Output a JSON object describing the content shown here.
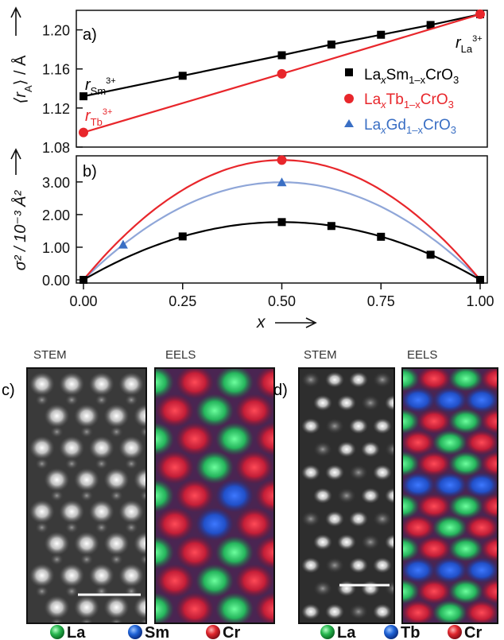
{
  "chart_data": [
    {
      "panel": "a)",
      "type": "line",
      "ylabel_main": "⟨r",
      "ylabel_sub": "A",
      "ylabel_tail": "⟩ / Å",
      "ylim": [
        1.08,
        1.22
      ],
      "yticks": [
        1.08,
        1.12,
        1.16,
        1.2
      ],
      "ytick_labels": [
        "1.08",
        "1.12",
        "1.16",
        "1.20"
      ],
      "xlim": [
        0,
        1
      ],
      "series": [
        {
          "key": "sm",
          "marker": "square",
          "color": "#000000",
          "x": [
            0,
            0.25,
            0.5,
            0.625,
            0.75,
            0.875,
            1.0
          ],
          "y": [
            1.132,
            1.153,
            1.174,
            1.185,
            1.195,
            1.205,
            1.216
          ]
        },
        {
          "key": "tb",
          "marker": "circle",
          "color": "#e8262b",
          "x": [
            0,
            0.5,
            1.0
          ],
          "y": [
            1.095,
            1.155,
            1.216
          ]
        }
      ],
      "legend": [
        {
          "key": "sm",
          "marker": "square",
          "color": "#000000",
          "parts": [
            [
              "La",
              ""
            ],
            [
              "x",
              "sub"
            ],
            [
              "Sm",
              ""
            ],
            [
              "1–x",
              "sub"
            ],
            [
              "CrO",
              ""
            ],
            [
              "3",
              "sub"
            ]
          ]
        },
        {
          "key": "tb",
          "marker": "circle",
          "color": "#e8262b",
          "parts": [
            [
              "La",
              ""
            ],
            [
              "x",
              "sub"
            ],
            [
              "Tb",
              ""
            ],
            [
              "1–x",
              "sub"
            ],
            [
              "CrO",
              ""
            ],
            [
              "3",
              "sub"
            ]
          ]
        },
        {
          "key": "gd",
          "marker": "triangle",
          "color": "#3a6fc4",
          "parts": [
            [
              "La",
              ""
            ],
            [
              "x",
              "sub"
            ],
            [
              "Gd",
              ""
            ],
            [
              "1–x",
              "sub"
            ],
            [
              "CrO",
              ""
            ],
            [
              "3",
              "sub"
            ]
          ]
        }
      ],
      "annotations": [
        {
          "key": "rSm",
          "color": "#000000",
          "main": "r",
          "sub": "Sm",
          "sup": "3+"
        },
        {
          "key": "rTb",
          "color": "#e8262b",
          "main": "r",
          "sub": "Tb",
          "sup": "3+"
        },
        {
          "key": "rLa",
          "color": "#000000",
          "main": "r",
          "sub": "La",
          "sup": "3+"
        }
      ]
    },
    {
      "panel": "b)",
      "type": "line",
      "ylabel": "σ² / 10⁻³ Å²",
      "ylim": [
        0,
        3.8
      ],
      "yticks": [
        0,
        1,
        2,
        3
      ],
      "ytick_labels": [
        "0.00",
        "1.00",
        "2.00",
        "3.00"
      ],
      "xlabel": "x",
      "xlim": [
        0,
        1
      ],
      "xticks": [
        0,
        0.25,
        0.5,
        0.75,
        1.0
      ],
      "xtick_labels": [
        "0.00",
        "0.25",
        "0.50",
        "0.75",
        "1.00"
      ],
      "series": [
        {
          "key": "sm",
          "marker": "square",
          "color": "#000000",
          "x": [
            0,
            0.25,
            0.5,
            0.625,
            0.75,
            0.875,
            1.0
          ],
          "y": [
            0,
            1.33,
            1.77,
            1.65,
            1.32,
            0.77,
            0
          ],
          "fit_peak": 1.77
        },
        {
          "key": "tb",
          "marker": "circle",
          "color": "#e8262b",
          "x": [
            0,
            0.5,
            1.0
          ],
          "y": [
            0,
            3.67,
            0
          ],
          "fit_peak": 3.67
        },
        {
          "key": "gd",
          "marker": "triangle",
          "color": "#3a6fc4",
          "line_color": "#8fa6d8",
          "x": [
            0,
            0.1,
            0.5,
            1.0
          ],
          "y": [
            0,
            1.08,
            2.99,
            0
          ],
          "fit_peak": 2.99
        }
      ]
    }
  ],
  "micrographs": {
    "c": {
      "label": "c)",
      "stem_title": "STEM",
      "eels_title": "EELS",
      "legend": [
        {
          "label": "La",
          "color": "#1db954"
        },
        {
          "label": "Sm",
          "color": "#1f63d6"
        },
        {
          "label": "Cr",
          "color": "#e0262d"
        }
      ]
    },
    "d": {
      "label": "d)",
      "stem_title": "STEM",
      "eels_title": "EELS",
      "legend": [
        {
          "label": "La",
          "color": "#1db954"
        },
        {
          "label": "Tb",
          "color": "#1f63d6"
        },
        {
          "label": "Cr",
          "color": "#e0262d"
        }
      ]
    }
  }
}
